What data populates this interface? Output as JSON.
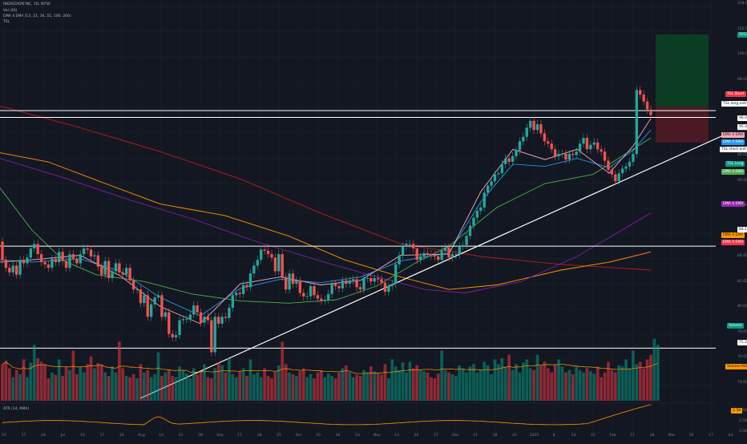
{
  "chart_data": {
    "type": "candlestick",
    "symbol_line": "INGREDION INC, 1D, NYSE",
    "legend": [
      "Vol (20)",
      "EMA 4 EMA (13, 21, 34, 55, 100, 200)",
      "TSL"
    ],
    "atr_label": "ATR (14, RMA)",
    "y_ticks": [
      "104.00",
      "102.00",
      "100.00",
      "98.00",
      "96.00",
      "94.00",
      "92.00",
      "90.00",
      "88.00",
      "86.00",
      "84.00",
      "82.00",
      "80.00",
      "78.00",
      "76.00",
      "74.00"
    ],
    "x_ticks": [
      "10",
      "17",
      "24",
      "Jul",
      "10",
      "17",
      "24",
      "Aug",
      "13",
      "21",
      "28",
      "Sep",
      "11",
      "18",
      "25",
      "Oct",
      "10",
      "16",
      "23",
      "Nov",
      "13",
      "20",
      "27",
      "Dec",
      "11",
      "18",
      "22",
      "2025",
      "8",
      "14",
      "21",
      "Feb",
      "11",
      "18",
      "Mar",
      "10",
      "17",
      "24"
    ],
    "atr_ticks": [
      "3.00",
      "2.50",
      "2.00"
    ],
    "price_tags": [
      {
        "text": "103.35",
        "bg": "#089981",
        "color": "#ffffff"
      },
      {
        "text": "TSL Short",
        "bg": "#f23645",
        "color": "#ffffff"
      },
      {
        "text": "TSL long entry",
        "bg": "#ffffff",
        "color": "#131722"
      },
      {
        "text": "96.00",
        "bg": "#ffffff",
        "color": "#131722"
      },
      {
        "text": "95.40",
        "bg": "#ffffff",
        "color": "#131722"
      },
      {
        "text": "EMA 4 EMA",
        "bg": "#f7a8b8",
        "color": "#131722"
      },
      {
        "text": "EMA 4 EMA",
        "bg": "#2196f3",
        "color": "#ffffff"
      },
      {
        "text": "TSL short entry",
        "bg": "#ffffff",
        "color": "#131722"
      },
      {
        "text": "TSL Long",
        "bg": "#089981",
        "color": "#ffffff"
      },
      {
        "text": "EMA 4 EMA",
        "bg": "#4caf50",
        "color": "#ffffff"
      },
      {
        "text": "EMA 4 EMA",
        "bg": "#9c27b0",
        "color": "#ffffff"
      },
      {
        "text": "84.10",
        "bg": "#ffffff",
        "color": "#131722"
      },
      {
        "text": "EMA 4 EMA",
        "bg": "#ff9800",
        "color": "#131722"
      },
      {
        "text": "EMA 4 EMA",
        "bg": "#f23645",
        "color": "#ffffff"
      },
      {
        "text": "Volume",
        "bg": "#089981",
        "color": "#ffffff"
      },
      {
        "text": "75.15",
        "bg": "#ffffff",
        "color": "#131722"
      },
      {
        "text": "Volume MA",
        "bg": "#ff9800",
        "color": "#131722"
      },
      {
        "text": "2.58",
        "bg": "#ff9800",
        "color": "#131722"
      }
    ],
    "horizontal_levels": [
      96.0,
      95.4,
      84.1,
      75.15
    ],
    "ylim": [
      73,
      105
    ],
    "candles": [
      [
        84.5,
        82.9
      ],
      [
        82.9,
        82.2
      ],
      [
        82.2,
        81.8
      ],
      [
        81.8,
        82.4
      ],
      [
        82.4,
        81.6
      ],
      [
        81.6,
        82.9
      ],
      [
        82.9,
        82.6
      ],
      [
        82.6,
        83.1
      ],
      [
        83.1,
        83.9
      ],
      [
        83.9,
        84.3
      ],
      [
        84.3,
        83.4
      ],
      [
        83.4,
        82.7
      ],
      [
        82.7,
        82.5
      ],
      [
        82.5,
        82.2
      ],
      [
        82.2,
        83.0
      ],
      [
        83.0,
        82.7
      ],
      [
        82.7,
        83.6
      ],
      [
        83.6,
        82.8
      ],
      [
        82.8,
        82.2
      ],
      [
        82.2,
        83.4
      ],
      [
        83.4,
        83.0
      ],
      [
        83.0,
        82.6
      ],
      [
        82.6,
        83.4
      ],
      [
        83.4,
        83.9
      ],
      [
        83.9,
        83.8
      ],
      [
        83.8,
        83.2
      ],
      [
        83.2,
        83.3
      ],
      [
        83.3,
        82.3
      ],
      [
        82.3,
        81.6
      ],
      [
        81.6,
        82.8
      ],
      [
        82.8,
        81.3
      ],
      [
        81.3,
        81.9
      ],
      [
        81.9,
        82.6
      ],
      [
        82.6,
        81.8
      ],
      [
        81.8,
        81.6
      ],
      [
        81.6,
        82.2
      ],
      [
        82.2,
        81.1
      ],
      [
        81.1,
        80.3
      ],
      [
        80.3,
        80.3
      ],
      [
        80.3,
        79.1
      ],
      [
        79.1,
        79.8
      ],
      [
        79.8,
        77.9
      ],
      [
        77.9,
        79.0
      ],
      [
        79.0,
        79.6
      ],
      [
        79.6,
        79.8
      ],
      [
        79.8,
        77.9
      ],
      [
        77.9,
        78.3
      ],
      [
        78.3,
        76.4
      ],
      [
        76.4,
        76.1
      ],
      [
        76.1,
        76.3
      ],
      [
        76.3,
        77.6
      ],
      [
        77.6,
        77.7
      ],
      [
        77.7,
        77.7
      ],
      [
        77.7,
        78.1
      ],
      [
        78.1,
        78.9
      ],
      [
        78.9,
        78.3
      ],
      [
        78.3,
        77.4
      ],
      [
        77.4,
        77.9
      ],
      [
        77.9,
        77.6
      ],
      [
        77.6,
        74.8
      ],
      [
        74.8,
        77.9
      ],
      [
        77.9,
        77.3
      ],
      [
        77.3,
        77.9
      ],
      [
        77.9,
        77.8
      ],
      [
        77.8,
        78.7
      ],
      [
        78.7,
        79.8
      ],
      [
        79.8,
        80.0
      ],
      [
        80.0,
        79.9
      ],
      [
        79.9,
        80.7
      ],
      [
        80.7,
        80.5
      ],
      [
        80.5,
        81.7
      ],
      [
        81.7,
        82.4
      ],
      [
        82.4,
        82.9
      ],
      [
        82.9,
        83.8
      ],
      [
        83.8,
        83.7
      ],
      [
        83.7,
        83.4
      ],
      [
        83.4,
        83.1
      ],
      [
        83.1,
        81.9
      ],
      [
        81.9,
        83.4
      ],
      [
        83.4,
        81.4
      ],
      [
        81.4,
        80.3
      ],
      [
        80.3,
        81.7
      ],
      [
        81.7,
        80.8
      ],
      [
        80.8,
        81.1
      ],
      [
        81.1,
        80.0
      ],
      [
        80.0,
        79.7
      ],
      [
        79.7,
        79.7
      ],
      [
        79.7,
        80.6
      ],
      [
        80.6,
        79.8
      ],
      [
        79.8,
        79.5
      ],
      [
        79.5,
        79.3
      ],
      [
        79.3,
        79.4
      ],
      [
        79.4,
        79.9
      ],
      [
        79.9,
        80.8
      ],
      [
        80.8,
        80.6
      ],
      [
        80.6,
        80.4
      ],
      [
        80.4,
        81.1
      ],
      [
        81.1,
        80.8
      ],
      [
        80.8,
        81.1
      ],
      [
        81.1,
        81.2
      ],
      [
        81.2,
        80.5
      ],
      [
        80.5,
        80.3
      ],
      [
        80.3,
        81.3
      ],
      [
        81.3,
        81.3
      ],
      [
        81.3,
        81.0
      ],
      [
        81.0,
        81.3
      ],
      [
        81.3,
        81.2
      ],
      [
        81.2,
        80.9
      ],
      [
        80.9,
        80.1
      ],
      [
        80.1,
        80.6
      ],
      [
        80.6,
        80.8
      ],
      [
        80.8,
        82.5
      ],
      [
        82.5,
        83.3
      ],
      [
        83.3,
        84.1
      ],
      [
        84.1,
        84.3
      ],
      [
        84.3,
        84.3
      ],
      [
        84.3,
        83.9
      ],
      [
        83.9,
        82.9
      ],
      [
        82.9,
        83.2
      ],
      [
        83.2,
        83.5
      ],
      [
        83.5,
        83.4
      ],
      [
        83.4,
        83.3
      ],
      [
        83.3,
        83.2
      ],
      [
        83.2,
        82.9
      ],
      [
        82.9,
        83.7
      ],
      [
        83.7,
        84.0
      ],
      [
        84.0,
        83.1
      ],
      [
        83.1,
        83.4
      ],
      [
        83.4,
        83.4
      ],
      [
        83.4,
        84.1
      ],
      [
        84.1,
        84.2
      ],
      [
        84.2,
        85.0
      ],
      [
        85.0,
        85.9
      ],
      [
        85.9,
        86.6
      ],
      [
        86.6,
        87.2
      ],
      [
        87.2,
        87.5
      ],
      [
        87.5,
        88.8
      ],
      [
        88.8,
        89.4
      ],
      [
        89.4,
        89.8
      ],
      [
        89.8,
        90.4
      ],
      [
        90.4,
        90.5
      ],
      [
        90.5,
        91.3
      ],
      [
        91.3,
        91.8
      ],
      [
        91.8,
        91.5
      ],
      [
        91.5,
        92.0
      ],
      [
        92.0,
        92.5
      ],
      [
        92.5,
        93.3
      ],
      [
        93.3,
        93.7
      ],
      [
        93.7,
        94.5
      ],
      [
        94.5,
        95.1
      ],
      [
        95.1,
        94.3
      ],
      [
        94.3,
        94.8
      ],
      [
        94.8,
        94.0
      ],
      [
        94.0,
        93.3
      ],
      [
        93.3,
        93.1
      ],
      [
        93.1,
        92.6
      ],
      [
        92.6,
        92.0
      ],
      [
        92.0,
        92.2
      ],
      [
        92.2,
        92.2
      ],
      [
        92.2,
        91.7
      ],
      [
        91.7,
        92.2
      ],
      [
        92.2,
        92.1
      ],
      [
        92.1,
        92.4
      ],
      [
        92.4,
        93.1
      ],
      [
        93.1,
        93.6
      ],
      [
        93.6,
        92.6
      ],
      [
        92.6,
        93.0
      ],
      [
        93.0,
        93.2
      ],
      [
        93.2,
        92.6
      ],
      [
        92.6,
        92.4
      ],
      [
        92.4,
        91.6
      ],
      [
        91.6,
        90.8
      ],
      [
        90.8,
        90.4
      ],
      [
        90.4,
        89.8
      ],
      [
        89.8,
        90.5
      ],
      [
        90.5,
        90.9
      ],
      [
        90.9,
        91.1
      ],
      [
        91.1,
        91.5
      ],
      [
        91.5,
        92.2
      ],
      [
        92.2,
        97.8
      ],
      [
        97.8,
        97.4
      ],
      [
        97.4,
        96.8
      ],
      [
        96.8,
        96.1
      ],
      [
        96.1,
        95.6
      ]
    ],
    "volumes": [
      0.62,
      0.68,
      0.55,
      0.4,
      0.52,
      0.45,
      0.7,
      0.4,
      0.65,
      0.95,
      0.72,
      0.66,
      0.62,
      0.38,
      0.48,
      0.44,
      0.7,
      0.42,
      0.58,
      0.52,
      0.85,
      0.45,
      0.58,
      0.48,
      0.62,
      0.75,
      0.55,
      0.64,
      0.62,
      0.48,
      0.42,
      0.58,
      0.48,
      1.0,
      0.55,
      0.42,
      0.4,
      0.45,
      0.38,
      0.62,
      0.48,
      0.52,
      0.4,
      0.45,
      0.82,
      0.42,
      0.48,
      0.52,
      0.42,
      0.4,
      0.58,
      0.52,
      0.46,
      0.38,
      0.55,
      0.44,
      0.5,
      0.62,
      0.4,
      0.38,
      0.55,
      0.65,
      0.6,
      0.48,
      0.72,
      0.45,
      0.4,
      0.5,
      0.55,
      0.42,
      0.7,
      0.45,
      0.48,
      0.4,
      0.55,
      0.42,
      0.38,
      0.5,
      0.6,
      1.0,
      0.62,
      0.48,
      0.45,
      0.42,
      0.5,
      0.55,
      0.4,
      0.45,
      0.38,
      0.48,
      0.52,
      0.4,
      0.46,
      0.42,
      0.38,
      0.48,
      0.55,
      0.6,
      0.48,
      0.4,
      0.44,
      0.42,
      0.52,
      0.48,
      0.58,
      0.5,
      0.46,
      0.44,
      0.62,
      0.38,
      0.7,
      0.58,
      0.52,
      0.65,
      0.48,
      0.66,
      0.55,
      0.6,
      0.52,
      0.5,
      0.48,
      0.4,
      0.38,
      0.46,
      0.85,
      0.52,
      0.48,
      0.45,
      0.42,
      0.6,
      0.55,
      0.48,
      0.58,
      0.62,
      0.48,
      0.52,
      0.66,
      0.6,
      0.45,
      0.7,
      0.62,
      0.72,
      0.58,
      0.78,
      0.52,
      0.62,
      0.48,
      0.65,
      0.7,
      0.55,
      0.52,
      0.78,
      0.6,
      0.66,
      0.55,
      0.48,
      0.62,
      0.7,
      0.58,
      0.48,
      0.52,
      0.45,
      0.58,
      0.52,
      0.48,
      0.55,
      0.5,
      0.46,
      0.58,
      0.4,
      0.48,
      0.66,
      0.52,
      0.48,
      0.6,
      0.58,
      0.7,
      0.55,
      0.85,
      0.62,
      0.66,
      0.55,
      0.7,
      0.78,
      1.05,
      0.95
    ]
  }
}
